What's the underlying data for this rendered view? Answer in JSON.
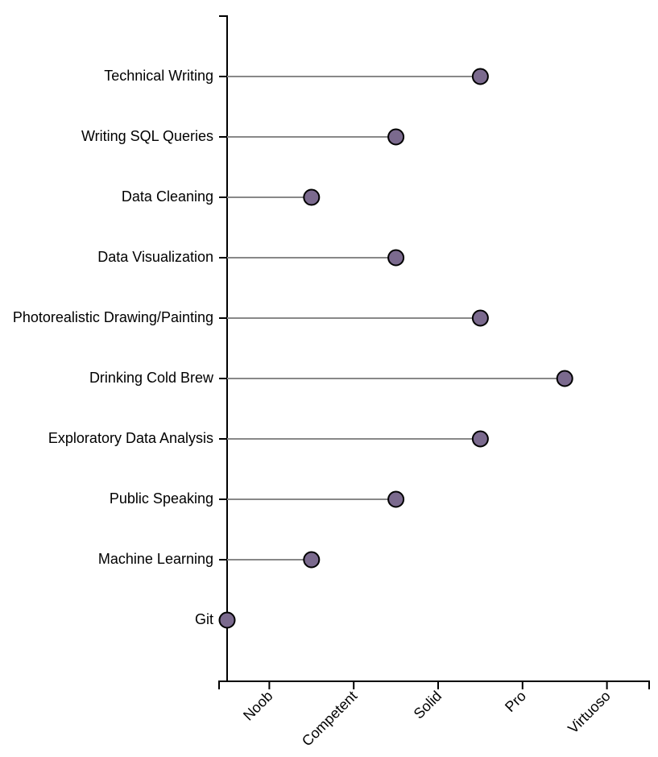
{
  "chart_data": {
    "type": "lollipop",
    "categories": [
      "Technical Writing",
      "Writing SQL Queries",
      "Data Cleaning",
      "Data Visualization",
      "Photorealistic Drawing/Painting",
      "Drinking Cold Brew",
      "Exploratory Data Analysis",
      "Public Speaking",
      "Machine Learning",
      "Git"
    ],
    "values": [
      4,
      3,
      2,
      3,
      4,
      5,
      4,
      3,
      2,
      1
    ],
    "x_ticks": [
      {
        "value": 1.5,
        "label": "Noob"
      },
      {
        "value": 2.5,
        "label": "Competent"
      },
      {
        "value": 3.5,
        "label": "Solid"
      },
      {
        "value": 4.5,
        "label": "Pro"
      },
      {
        "value": 5.5,
        "label": "Virtuoso"
      }
    ],
    "xlim": [
      1,
      6
    ],
    "title": "",
    "xlabel": "",
    "ylabel": "",
    "grid": false,
    "colors": {
      "dot_fill": "#7b6a8e",
      "dot_stroke": "#000000",
      "stem": "#888888",
      "axis": "#000000"
    }
  }
}
